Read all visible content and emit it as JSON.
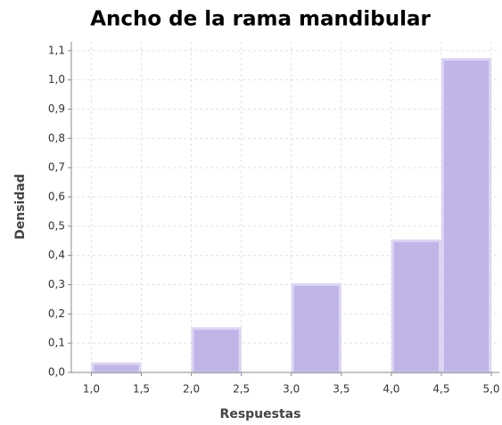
{
  "chart_data": {
    "type": "histogram",
    "title": "Ancho de la rama mandibular",
    "x_label": "Respuestas",
    "y_label": "Densidad",
    "bins": [
      1.0,
      1.5,
      2.0,
      2.5,
      3.0,
      3.5,
      4.0,
      4.5,
      5.0
    ],
    "values": [
      0.03,
      0,
      0.15,
      0,
      0.3,
      0,
      0.45,
      1.07
    ],
    "color": "#c0b4e8",
    "xlim": [
      0.8,
      5.08
    ],
    "ylim": [
      0,
      1.13
    ],
    "xticks": [
      {
        "value": 1.0,
        "label": "1,0"
      },
      {
        "value": 1.5,
        "label": "1,5"
      },
      {
        "value": 2.0,
        "label": "2,0"
      },
      {
        "value": 2.5,
        "label": "2,5"
      },
      {
        "value": 3.0,
        "label": "3,0"
      },
      {
        "value": 3.5,
        "label": "3,5"
      },
      {
        "value": 4.0,
        "label": "4,0"
      },
      {
        "value": 4.5,
        "label": "4,5"
      },
      {
        "value": 5.0,
        "label": "5,0"
      }
    ],
    "yticks": [
      {
        "value": 0.0,
        "label": "0,0"
      },
      {
        "value": 0.1,
        "label": "0,1"
      },
      {
        "value": 0.2,
        "label": "0,2"
      },
      {
        "value": 0.3,
        "label": "0,3"
      },
      {
        "value": 0.4,
        "label": "0,4"
      },
      {
        "value": 0.5,
        "label": "0,5"
      },
      {
        "value": 0.6,
        "label": "0,6"
      },
      {
        "value": 0.7,
        "label": "0,7"
      },
      {
        "value": 0.8,
        "label": "0,8"
      },
      {
        "value": 0.9,
        "label": "0,9"
      },
      {
        "value": 1.0,
        "label": "1,0"
      },
      {
        "value": 1.1,
        "label": "1,1"
      }
    ],
    "grid": true
  }
}
